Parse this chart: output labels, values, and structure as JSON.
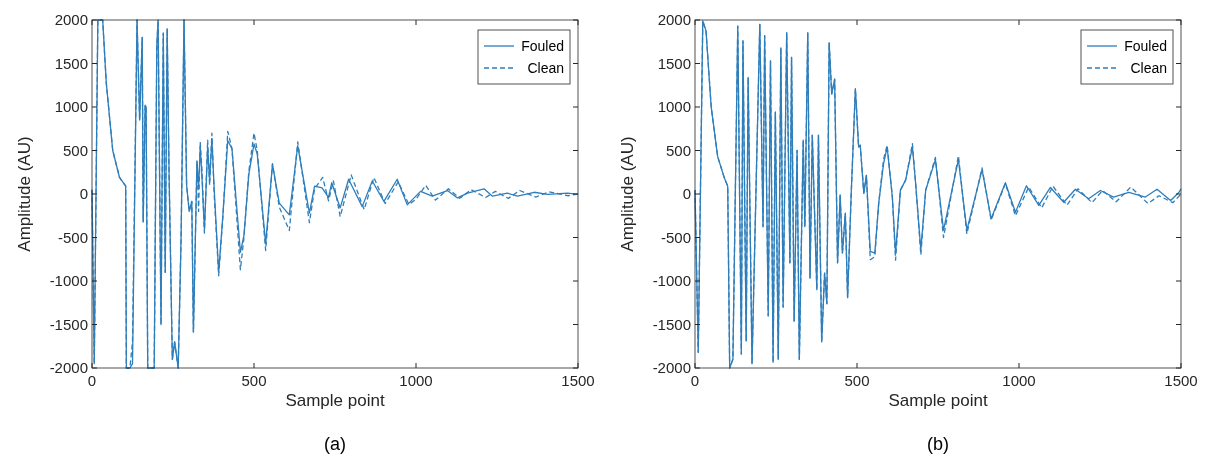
{
  "chart_data": [
    {
      "type": "line",
      "xlabel": "Sample point",
      "ylabel": "Amplitude (AU)",
      "annotations": [
        "(a)"
      ],
      "xlim": [
        0,
        1500
      ],
      "ylim": [
        -2000,
        2000
      ],
      "xticks": [
        0,
        500,
        1000,
        1500
      ],
      "yticks": [
        -2000,
        -1500,
        -1000,
        -500,
        0,
        500,
        1000,
        1500,
        2000
      ],
      "legend": "top right",
      "series": [
        {
          "name": "Fouled",
          "color": "#2e7ebc",
          "line_style": "solid",
          "x": [
            0,
            7,
            18,
            33,
            44,
            64,
            85,
            104,
            106,
            117,
            125,
            139,
            147,
            155,
            158,
            164,
            167,
            172,
            180,
            192,
            200,
            204,
            213,
            220,
            226,
            232,
            238,
            248,
            255,
            266,
            275,
            284,
            292,
            300,
            308,
            313,
            324,
            329,
            334,
            339,
            347,
            357,
            363,
            370,
            377,
            391,
            404,
            419,
            432,
            458,
            469,
            484,
            500,
            510,
            536,
            557,
            578,
            609,
            635,
            671,
            687,
            710,
            730,
            740,
            766,
            792,
            834,
            865,
            901,
            942,
            973,
            1014,
            1050,
            1097,
            1128,
            1159,
            1210,
            1236,
            1282,
            1313,
            1365,
            1406,
            1468,
            1500
          ],
          "values": [
            50,
            -1950,
            2000,
            2000,
            1280,
            500,
            190,
            90,
            -2000,
            -2000,
            -1950,
            2000,
            850,
            1800,
            -320,
            1020,
            1000,
            -2000,
            -2000,
            -2000,
            1700,
            2000,
            -1500,
            1850,
            -900,
            1900,
            200,
            -1900,
            -1700,
            -2000,
            -500,
            2000,
            100,
            -200,
            -85,
            -1585,
            380,
            70,
            540,
            225,
            -415,
            540,
            150,
            635,
            70,
            -900,
            -240,
            615,
            520,
            -670,
            -475,
            225,
            575,
            460,
            -570,
            340,
            -105,
            -240,
            555,
            -220,
            90,
            70,
            -40,
            130,
            -160,
            170,
            -145,
            150,
            -85,
            170,
            -125,
            30,
            -25,
            40,
            -45,
            10,
            60,
            -25,
            10,
            -25,
            20,
            -5,
            10,
            -5
          ]
        },
        {
          "name": "Clean",
          "color": "#2e7ebc",
          "line_style": "dashed",
          "x": [
            0,
            7,
            18,
            33,
            44,
            64,
            85,
            104,
            106,
            117,
            125,
            139,
            147,
            155,
            158,
            164,
            167,
            172,
            180,
            192,
            200,
            204,
            213,
            220,
            226,
            232,
            238,
            248,
            255,
            266,
            275,
            284,
            292,
            300,
            308,
            313,
            324,
            329,
            334,
            339,
            347,
            357,
            363,
            370,
            377,
            391,
            404,
            419,
            432,
            458,
            469,
            484,
            500,
            510,
            536,
            557,
            578,
            609,
            635,
            671,
            687,
            712,
            730,
            745,
            766,
            800,
            840,
            870,
            905,
            945,
            978,
            1000,
            1030,
            1060,
            1100,
            1135,
            1170,
            1215,
            1245,
            1285,
            1320,
            1370,
            1410,
            1470,
            1500
          ],
          "values": [
            50,
            -1950,
            2000,
            2000,
            1280,
            500,
            190,
            90,
            -2000,
            -2000,
            -1700,
            2000,
            850,
            1800,
            -320,
            1020,
            1000,
            -2000,
            -2000,
            -2000,
            1700,
            2000,
            -1500,
            1850,
            -900,
            1900,
            200,
            -1900,
            -1700,
            -2000,
            -500,
            2000,
            100,
            -200,
            -85,
            -1585,
            380,
            -200,
            600,
            300,
            -450,
            620,
            100,
            700,
            0,
            -940,
            -260,
            720,
            520,
            -870,
            -500,
            260,
            700,
            500,
            -650,
            350,
            -150,
            -420,
            600,
            -330,
            60,
            190,
            -80,
            150,
            -260,
            220,
            -180,
            190,
            -110,
            140,
            -120,
            -60,
            100,
            -70,
            60,
            -50,
            50,
            -40,
            30,
            -50,
            40,
            -35,
            25,
            -20,
            0
          ]
        }
      ]
    },
    {
      "type": "line",
      "xlabel": "Sample point",
      "ylabel": "Amplitude (AU)",
      "annotations": [
        "(b)"
      ],
      "xlim": [
        0,
        1500
      ],
      "ylim": [
        -2000,
        2000
      ],
      "xticks": [
        0,
        500,
        1000,
        1500
      ],
      "yticks": [
        -2000,
        -1500,
        -1000,
        -500,
        0,
        500,
        1000,
        1500,
        2000
      ],
      "legend": "top right",
      "series": [
        {
          "name": "Fouled",
          "color": "#2e7ebc",
          "line_style": "solid",
          "x": [
            0,
            10,
            24,
            34,
            50,
            70,
            91,
            101,
            107,
            117,
            132,
            143,
            148,
            158,
            164,
            176,
            200,
            210,
            215,
            226,
            233,
            241,
            248,
            257,
            265,
            272,
            283,
            293,
            298,
            306,
            315,
            322,
            334,
            339,
            348,
            355,
            362,
            376,
            381,
            391,
            400,
            407,
            414,
            422,
            431,
            440,
            448,
            455,
            464,
            471,
            482,
            495,
            505,
            510,
            521,
            529,
            541,
            555,
            567,
            582,
            593,
            609,
            619,
            634,
            650,
            671,
            681,
            697,
            712,
            742,
            767,
            813,
            839,
            886,
            914,
            958,
            989,
            1023,
            1061,
            1097,
            1138,
            1174,
            1215,
            1251,
            1292,
            1339,
            1390,
            1426,
            1468,
            1494,
            1500
          ],
          "values": [
            45,
            -1820,
            1990,
            1875,
            1000,
            430,
            180,
            90,
            -2000,
            -1900,
            1930,
            -1840,
            1760,
            -1690,
            1340,
            -1950,
            1950,
            -375,
            1820,
            -1400,
            1530,
            -1935,
            940,
            -1900,
            1680,
            -1300,
            1855,
            -790,
            1570,
            -1460,
            500,
            -1900,
            620,
            -375,
            1855,
            -965,
            675,
            -1100,
            675,
            -1700,
            -910,
            -1260,
            1740,
            1150,
            1320,
            -790,
            -10,
            -680,
            -220,
            -1190,
            -10,
            1210,
            540,
            560,
            10,
            215,
            -660,
            -680,
            -105,
            350,
            540,
            -30,
            -680,
            45,
            160,
            540,
            120,
            -640,
            45,
            395,
            -415,
            395,
            -415,
            280,
            -285,
            130,
            -210,
            95,
            -130,
            75,
            -95,
            55,
            -55,
            40,
            -35,
            20,
            -35,
            55,
            -75,
            20,
            60
          ]
        },
        {
          "name": "Clean",
          "color": "#2e7ebc",
          "line_style": "dashed",
          "x": [
            0,
            10,
            24,
            34,
            50,
            70,
            91,
            101,
            107,
            117,
            132,
            143,
            148,
            158,
            164,
            176,
            200,
            210,
            215,
            226,
            233,
            241,
            248,
            257,
            265,
            272,
            283,
            293,
            298,
            306,
            315,
            322,
            334,
            339,
            348,
            355,
            362,
            376,
            381,
            391,
            400,
            407,
            414,
            422,
            431,
            440,
            448,
            455,
            464,
            471,
            482,
            495,
            505,
            510,
            521,
            529,
            541,
            555,
            567,
            582,
            593,
            609,
            619,
            634,
            650,
            671,
            681,
            697,
            712,
            742,
            767,
            813,
            839,
            886,
            914,
            958,
            989,
            1030,
            1070,
            1105,
            1148,
            1182,
            1225,
            1258,
            1300,
            1345,
            1398,
            1432,
            1475,
            1500
          ],
          "values": [
            45,
            -1820,
            1990,
            1875,
            1000,
            430,
            180,
            90,
            -2000,
            -1900,
            1930,
            -1840,
            1760,
            -1690,
            1340,
            -1950,
            1950,
            -375,
            1820,
            -1400,
            1530,
            -1935,
            940,
            -1900,
            1680,
            -1300,
            1855,
            -790,
            1570,
            -1460,
            500,
            -1900,
            620,
            -375,
            1855,
            -965,
            675,
            -1100,
            675,
            -1700,
            -910,
            -1260,
            1740,
            1150,
            1320,
            -790,
            -10,
            -680,
            -220,
            -1190,
            -10,
            1210,
            540,
            560,
            10,
            215,
            -755,
            -720,
            -105,
            400,
            560,
            -30,
            -760,
            45,
            160,
            580,
            120,
            -700,
            45,
            420,
            -500,
            440,
            -460,
            300,
            -300,
            120,
            -250,
            80,
            -160,
            90,
            -130,
            60,
            -100,
            40,
            -90,
            80,
            -110,
            -20,
            -100,
            0
          ]
        }
      ]
    }
  ]
}
